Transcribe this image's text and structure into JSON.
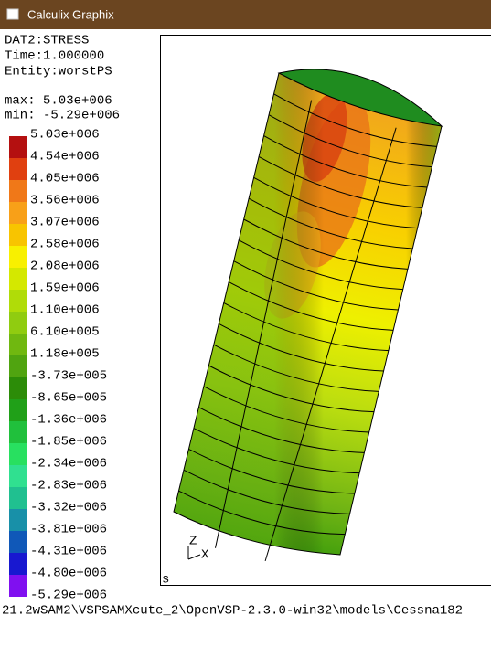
{
  "window": {
    "title": "Calculix Graphix"
  },
  "info": {
    "lines": [
      "DAT2:STRESS",
      "Time:1.000000",
      "Entity:worstPS"
    ],
    "max": "max: 5.03e+006",
    "min": "min: -5.29e+006"
  },
  "legend": {
    "labels": [
      "5.03e+006",
      "4.54e+006",
      "4.05e+006",
      "3.56e+006",
      "3.07e+006",
      "2.58e+006",
      "2.08e+006",
      "1.59e+006",
      "1.10e+006",
      "6.10e+005",
      "1.18e+005",
      "-3.73e+005",
      "-8.65e+005",
      "-1.36e+006",
      "-1.85e+006",
      "-2.34e+006",
      "-2.83e+006",
      "-3.32e+006",
      "-3.81e+006",
      "-4.31e+006",
      "-4.80e+006",
      "-5.29e+006"
    ],
    "colors": [
      "#b41010",
      "#e04010",
      "#f07818",
      "#f8a018",
      "#f8c400",
      "#f8f000",
      "#d4e800",
      "#b0dc08",
      "#90cc10",
      "#70b810",
      "#50a410",
      "#2c8c08",
      "#20a018",
      "#20c03c",
      "#28e060",
      "#30e090",
      "#20c090",
      "#1890a8",
      "#1058b8",
      "#1818d0",
      "#8010f0"
    ]
  },
  "viewport": {
    "corner_label": "s",
    "axes": {
      "z": "Z",
      "x": "X"
    }
  },
  "status_bar": {
    "text": "21.2wSAM2\\VSPSAMXcute_2\\OpenVSP-2.3.0-win32\\models\\Cessna182"
  }
}
